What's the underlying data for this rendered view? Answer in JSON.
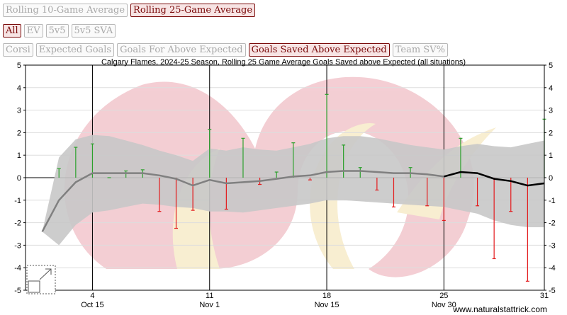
{
  "rolling_buttons": [
    {
      "label": "Rolling 10-Game Average",
      "active": false
    },
    {
      "label": "Rolling 25-Game Average",
      "active": true
    }
  ],
  "situation_buttons": [
    {
      "label": "All",
      "active": true
    },
    {
      "label": "EV",
      "active": false
    },
    {
      "label": "5v5",
      "active": false
    },
    {
      "label": "5v5 SVA",
      "active": false
    }
  ],
  "metric_buttons": [
    {
      "label": "Corsi",
      "active": false
    },
    {
      "label": "Expected Goals",
      "active": false
    },
    {
      "label": "Goals For Above Expected",
      "active": false
    },
    {
      "label": "Goals Saved Above Expected",
      "active": true
    },
    {
      "label": "Team SV%",
      "active": false
    }
  ],
  "watermark": "www.naturalstattrick.com",
  "colors": {
    "positive": "#2ca02c",
    "negative": "#e31a1c",
    "band": "#c8c8c8",
    "avg_line": "#808080",
    "avg_line_recent": "#000000",
    "logo_red": "#f2c6cc",
    "logo_gold": "#f7ecc9"
  },
  "chart_data": {
    "type": "bar",
    "title": "Calgary Flames, 2024-25 Season, Rolling 25 Game Average Goals Saved above Expected (all situations)",
    "ylim": [
      -5,
      5
    ],
    "yticks": [
      -5,
      -4,
      -3,
      -2,
      -1,
      0,
      1,
      2,
      3,
      4,
      5
    ],
    "xlim": [
      0,
      31
    ],
    "xticks": [
      {
        "game": 4,
        "num": "4",
        "date": "Oct 15"
      },
      {
        "game": 11,
        "num": "11",
        "date": "Nov 1"
      },
      {
        "game": 18,
        "num": "18",
        "date": "Nov 15"
      },
      {
        "game": 25,
        "num": "25",
        "date": "Nov 30"
      },
      {
        "game": 31,
        "num": "31",
        "date": ""
      }
    ],
    "games": [
      1,
      2,
      3,
      4,
      5,
      6,
      7,
      8,
      9,
      10,
      11,
      12,
      13,
      14,
      15,
      16,
      17,
      18,
      19,
      20,
      21,
      22,
      23,
      24,
      25,
      26,
      27,
      28,
      29,
      30,
      31
    ],
    "gsax": [
      -2.4,
      0.4,
      1.35,
      1.5,
      0.0,
      0.3,
      0.35,
      -1.5,
      -2.25,
      -1.45,
      2.15,
      -1.4,
      1.75,
      -0.3,
      0.25,
      1.55,
      -0.1,
      3.7,
      1.45,
      0.45,
      -0.55,
      -1.3,
      0.45,
      -1.25,
      -1.9,
      1.75,
      -1.25,
      -3.6,
      -1.5,
      -4.6,
      2.6
    ],
    "rolling_avg": [
      -2.4,
      -1.0,
      -0.2,
      0.2,
      0.2,
      0.2,
      0.2,
      0.1,
      -0.05,
      -0.35,
      -0.1,
      -0.25,
      -0.2,
      -0.15,
      -0.05,
      0.05,
      0.1,
      0.25,
      0.3,
      0.3,
      0.25,
      0.2,
      0.2,
      0.15,
      0.05,
      0.25,
      0.2,
      -0.05,
      -0.15,
      -0.35,
      -0.25
    ],
    "band_upper": [
      -2.4,
      0.9,
      1.7,
      1.9,
      1.85,
      1.65,
      1.45,
      1.2,
      1.0,
      0.75,
      1.3,
      1.2,
      1.35,
      1.25,
      1.2,
      1.35,
      1.5,
      1.75,
      1.85,
      1.85,
      1.75,
      1.6,
      1.45,
      1.35,
      1.25,
      1.4,
      1.5,
      1.4,
      1.35,
      1.5,
      1.65
    ],
    "band_lower": [
      -2.4,
      -3.0,
      -2.1,
      -1.55,
      -1.45,
      -1.3,
      -1.15,
      -1.2,
      -1.3,
      -1.35,
      -1.5,
      -1.5,
      -1.55,
      -1.45,
      -1.35,
      -1.25,
      -1.15,
      -1.0,
      -1.0,
      -1.05,
      -1.1,
      -1.15,
      -1.2,
      -1.25,
      -1.3,
      -1.45,
      -1.6,
      -1.9,
      -2.1,
      -2.2,
      -2.2
    ],
    "highlight_from_game": 25
  }
}
